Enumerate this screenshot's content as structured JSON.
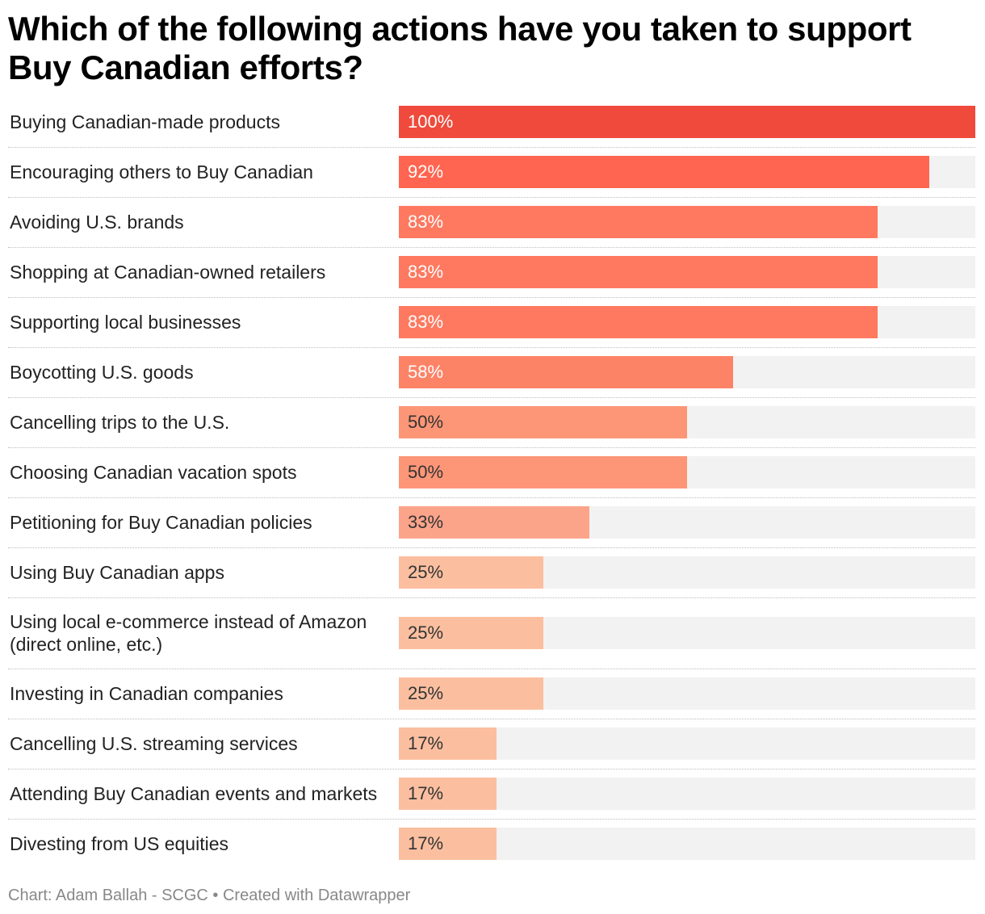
{
  "chart_data": {
    "type": "bar",
    "orientation": "horizontal",
    "title": "Which of the following actions have you taken to support Buy Canadian efforts?",
    "categories": [
      "Buying Canadian-made products",
      "Encouraging others to Buy Canadian",
      "Avoiding U.S. brands",
      "Shopping at Canadian-owned retailers",
      "Supporting local businesses",
      "Boycotting U.S. goods",
      "Cancelling trips to the U.S.",
      "Choosing Canadian vacation spots",
      "Petitioning for Buy Canadian policies",
      "Using Buy Canadian apps",
      "Using local e-commerce instead of Amazon (direct online, etc.)",
      "Investing in Canadian companies",
      "Cancelling U.S. streaming services",
      "Attending Buy Canadian events and markets",
      "Divesting from US equities"
    ],
    "values": [
      100,
      92,
      83,
      83,
      83,
      58,
      50,
      50,
      33,
      25,
      25,
      25,
      17,
      17,
      17
    ],
    "value_labels": [
      "100%",
      "92%",
      "83%",
      "83%",
      "83%",
      "58%",
      "50%",
      "50%",
      "33%",
      "25%",
      "25%",
      "25%",
      "17%",
      "17%",
      "17%"
    ],
    "unit": "%",
    "xlim": [
      0,
      100
    ],
    "grid": false,
    "legend": "none",
    "colors": {
      "scale": [
        "#fbbfa0",
        "#fba48a",
        "#fd9677",
        "#fd8367",
        "#fe7960",
        "#ff6550",
        "#ef4a3c"
      ],
      "track": "#f2f2f2",
      "label_light": "#ffffff",
      "label_dark": "#333333"
    }
  },
  "footer": "Chart: Adam Ballah - SCGC • Created with Datawrapper"
}
